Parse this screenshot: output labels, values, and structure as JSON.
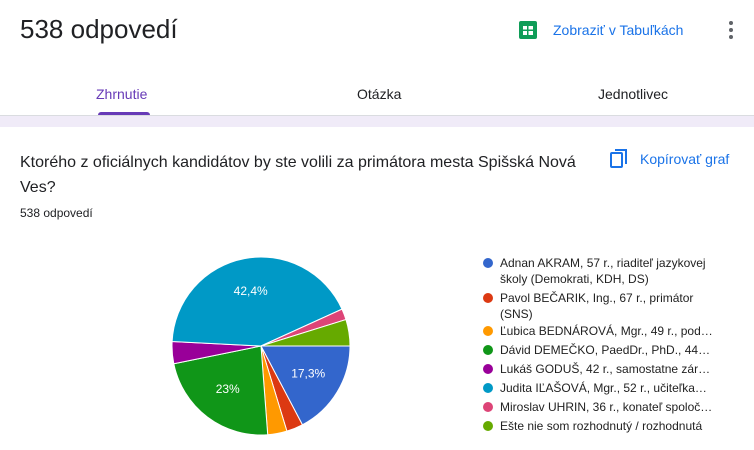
{
  "header": {
    "title": "538 odpovedí",
    "sheets_link": "Zobraziť v Tabuľkách"
  },
  "tabs": [
    "Zhrnutie",
    "Otázka",
    "Jednotlivec"
  ],
  "question": {
    "text": "Ktorého z oficiálnych kandidátov by ste volili za primátora mesta Spišská Nová Ves?",
    "copy_button": "Kopírovať graf",
    "response_count": "538 odpovedí"
  },
  "chart_data": {
    "type": "pie",
    "categories": [
      "Adnan AKRAM, 57 r., riaditeľ jazykovej školy (Demokrati, KDH, DS)",
      "Pavol BEČARIK, Ing., 67 r., primátor (SNS)",
      "Ľubica BEDNÁROVÁ, Mgr., 49 r., pod…",
      "Dávid DEMEČKO, PaedDr., PhD., 44…",
      "Lukáš GODUŠ, 42 r., samostatne zár…",
      "Judita IĽAŠOVÁ, Mgr., 52 r., učiteľka…",
      "Miroslav UHRIN, 36 r., konateľ spoloč…",
      "Ešte nie som rozhodnutý / rozhodnutá"
    ],
    "values": [
      17.3,
      3,
      3.5,
      23,
      4,
      42.4,
      2,
      4.8
    ],
    "value_labels": [
      "17,3%",
      null,
      null,
      "23%",
      null,
      "42,4%",
      null,
      null
    ],
    "colors": [
      "#3366cc",
      "#dc3912",
      "#ff9900",
      "#109618",
      "#990099",
      "#0099c6",
      "#dd4477",
      "#66aa00"
    ]
  }
}
